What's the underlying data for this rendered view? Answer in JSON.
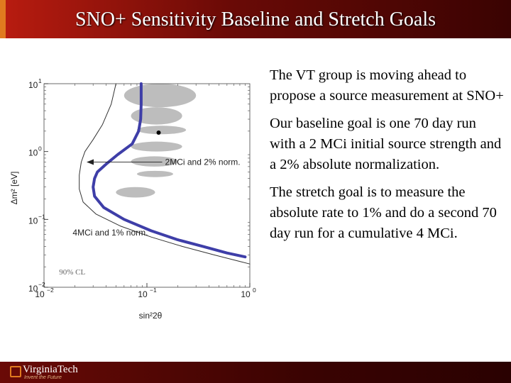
{
  "header": {
    "title": "SNO+ Sensitivity Baseline and Stretch Goals"
  },
  "body_text": {
    "p1": "The VT group is moving ahead to propose a source measurement at SNO+",
    "p2": "Our baseline goal is one 70 day run with a 2 MCi initial source strength and a 2% absolute normalization.",
    "p3": "The stretch goal is to measure the absolute rate to 1% and do a second 70 day run for a cumulative 4 MCi."
  },
  "footer": {
    "logo_text": "VirginiaTech",
    "logo_tagline": "Invent the Future"
  },
  "colors": {
    "title_bar": "#8b0e08",
    "curve_thick": "#3e3ea8",
    "curve_thin": "#333333",
    "excluded_region": "#bdbdbd"
  },
  "chart_data": {
    "type": "line",
    "xlabel": "sin²2θ",
    "ylabel": "Δm² [eV]",
    "x_scale": "log",
    "y_scale": "log",
    "xlim": [
      0.01,
      1
    ],
    "ylim": [
      0.01,
      10
    ],
    "x_ticks": [
      {
        "value": 0.01,
        "base": "10",
        "exp": "−2"
      },
      {
        "value": 0.1,
        "base": "10",
        "exp": "−1"
      },
      {
        "value": 1,
        "base": "10",
        "exp": "0"
      }
    ],
    "y_ticks": [
      {
        "value": 10,
        "base": "10",
        "exp": "1"
      },
      {
        "value": 1,
        "base": "10",
        "exp": "0"
      },
      {
        "value": 0.1,
        "base": "10",
        "exp": "−1"
      },
      {
        "value": 0.01,
        "base": "10",
        "exp": "−2"
      }
    ],
    "series": [
      {
        "style": "thick-blue",
        "x": [
          0.088,
          0.088,
          0.087,
          0.083,
          0.072,
          0.052,
          0.04,
          0.033,
          0.031,
          0.03,
          0.031,
          0.038,
          0.06,
          0.11,
          0.2,
          0.35,
          0.6,
          0.9
        ],
        "y": [
          10,
          5,
          3,
          2,
          1.3,
          0.9,
          0.65,
          0.5,
          0.4,
          0.3,
          0.22,
          0.15,
          0.1,
          0.068,
          0.05,
          0.04,
          0.032,
          0.028
        ]
      },
      {
        "style": "thin-black",
        "x": [
          0.05,
          0.045,
          0.037,
          0.03,
          0.025,
          0.023,
          0.022,
          0.022,
          0.024,
          0.032,
          0.055,
          0.11,
          0.22,
          0.45,
          0.8,
          1.0
        ],
        "y": [
          10,
          5,
          2.5,
          1.5,
          1.0,
          0.7,
          0.45,
          0.28,
          0.18,
          0.12,
          0.08,
          0.055,
          0.04,
          0.03,
          0.024,
          0.022
        ]
      }
    ],
    "annotations": [
      {
        "text": "2MCi and 2% norm.",
        "x": 0.15,
        "y": 0.7
      },
      {
        "text": "4MCi and 1% norm.",
        "x": 0.019,
        "y": 0.064
      },
      {
        "text": "90% CL",
        "x": 0.014,
        "y": 0.017
      }
    ],
    "points": [
      {
        "x": 0.13,
        "y": 1.9
      }
    ],
    "excluded_regions": [
      {
        "x": [
          0.06,
          0.3
        ],
        "y": [
          4.5,
          10
        ]
      },
      {
        "x": [
          0.07,
          0.22
        ],
        "y": [
          2.5,
          4.5
        ]
      },
      {
        "x": [
          0.08,
          0.24
        ],
        "y": [
          1.8,
          2.4
        ]
      },
      {
        "x": [
          0.07,
          0.22
        ],
        "y": [
          1.0,
          1.4
        ]
      },
      {
        "x": [
          0.07,
          0.2
        ],
        "y": [
          0.6,
          0.85
        ]
      },
      {
        "x": [
          0.08,
          0.18
        ],
        "y": [
          0.42,
          0.52
        ]
      },
      {
        "x": [
          0.05,
          0.12
        ],
        "y": [
          0.21,
          0.3
        ]
      }
    ]
  }
}
